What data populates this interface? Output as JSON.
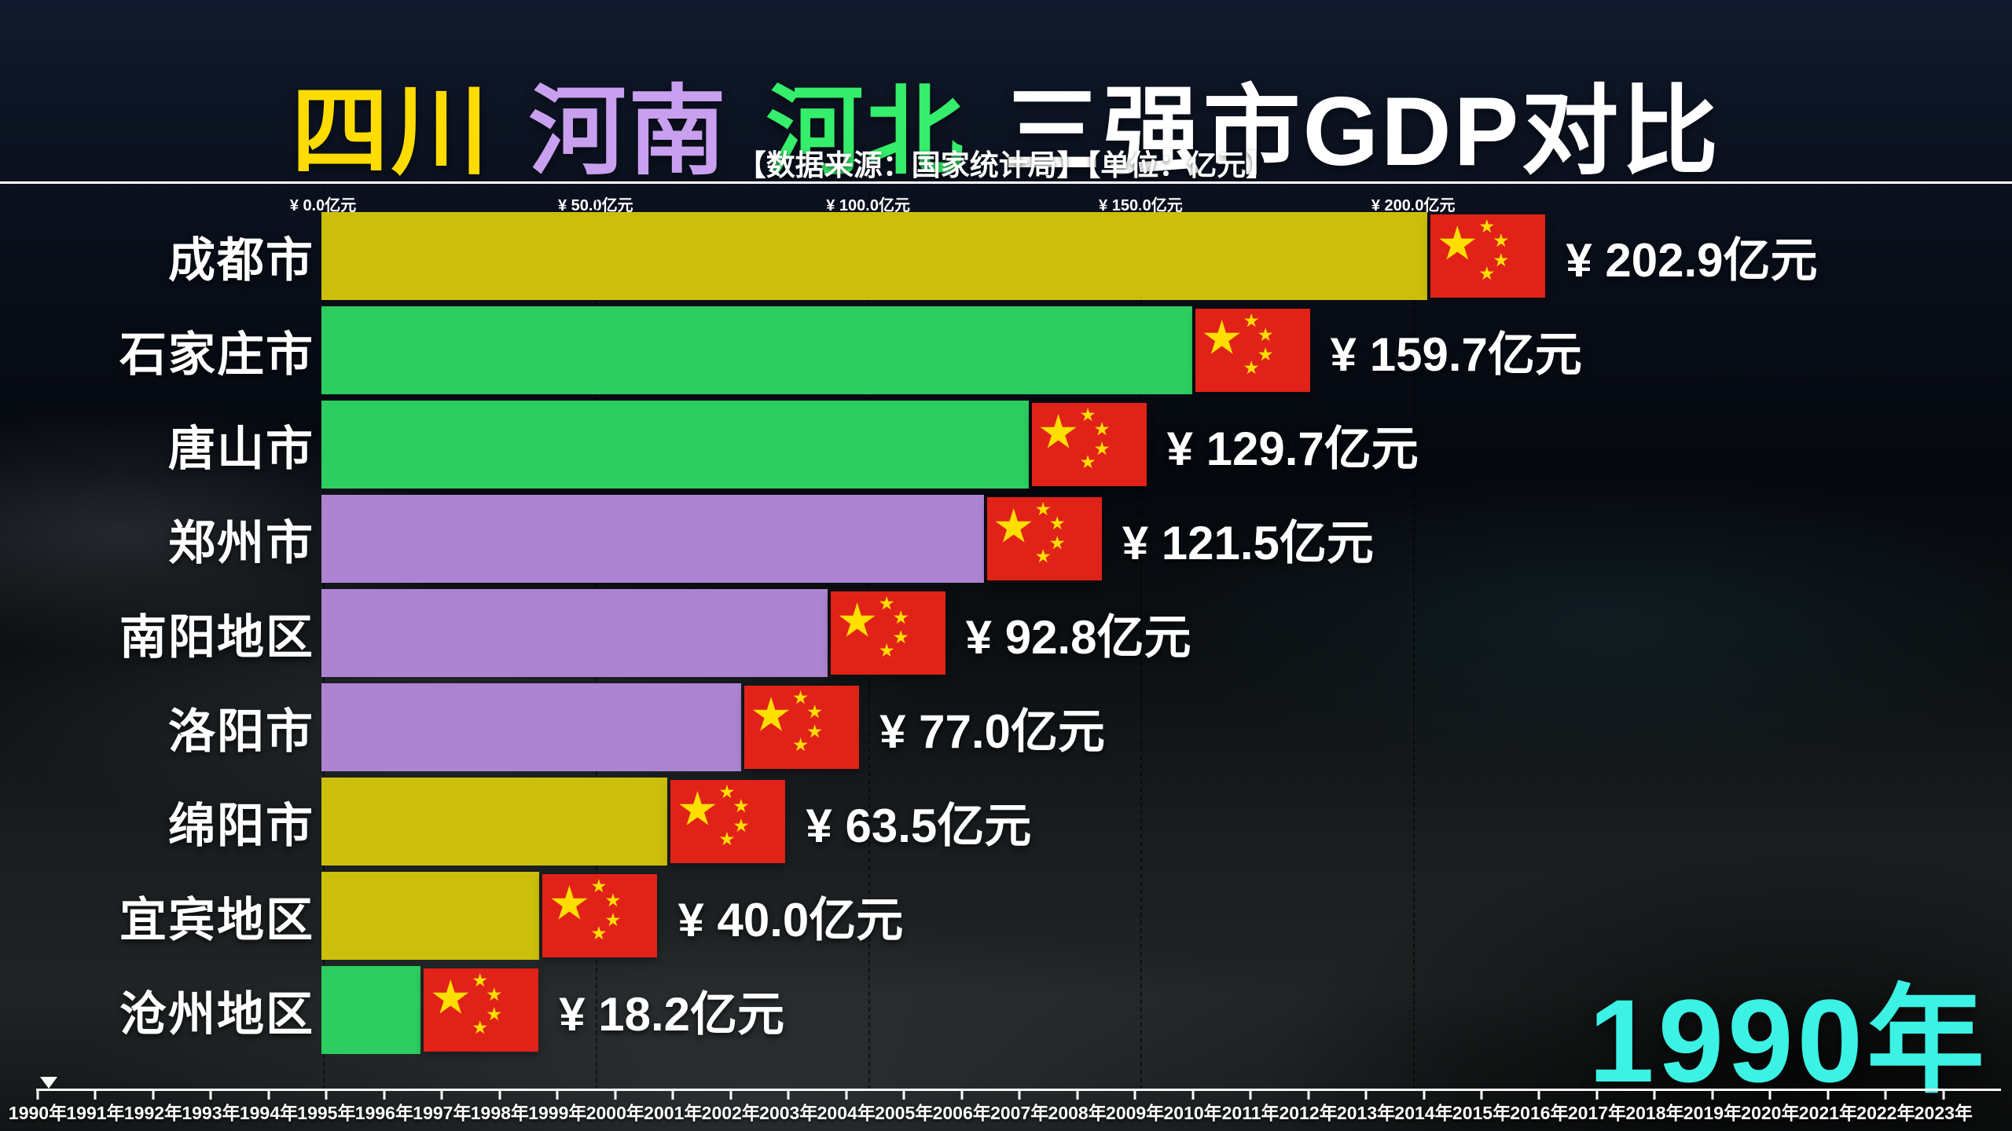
{
  "header": {
    "title_segments": [
      {
        "text": "四川",
        "color": "#FFDC00"
      },
      {
        "text": "河南",
        "color": "#C9A0F0"
      },
      {
        "text": "河北",
        "color": "#35EE6B"
      },
      {
        "text": "三强市GDP对比",
        "color": "#FFFFFF"
      }
    ],
    "subtitle": "【数据来源：国家统计局】【单位：亿元】"
  },
  "chart_data": {
    "type": "bar",
    "orientation": "horizontal",
    "title": "四川 河南 河北 三强市GDP对比",
    "unit": "亿元",
    "xlim": [
      0,
      230
    ],
    "x_ticks": [
      0,
      50,
      100,
      150,
      200
    ],
    "x_tick_labels": [
      "¥ 0.0亿元",
      "¥ 50.0亿元",
      "¥ 100.0亿元",
      "¥ 150.0亿元",
      "¥ 200.0亿元"
    ],
    "grid": "dashed-vertical",
    "categories": [
      "成都市",
      "石家庄市",
      "唐山市",
      "郑州市",
      "南阳地区",
      "洛阳市",
      "绵阳市",
      "宜宾地区",
      "沧州地区"
    ],
    "values": [
      202.9,
      159.7,
      129.7,
      121.5,
      92.8,
      77.0,
      63.5,
      40.0,
      18.2
    ],
    "value_labels": [
      "¥ 202.9亿元",
      "¥ 159.7亿元",
      "¥ 129.7亿元",
      "¥ 121.5亿元",
      "¥ 92.8亿元",
      "¥ 77.0亿元",
      "¥ 63.5亿元",
      "¥ 40.0亿元",
      "¥ 18.2亿元"
    ],
    "provinces": [
      "四川",
      "河北",
      "河北",
      "河南",
      "河南",
      "河南",
      "四川",
      "四川",
      "河北"
    ],
    "legend": {
      "四川": "#CCBF0B",
      "河南": "#AD84D1",
      "河北": "#2CCE60"
    },
    "legend_position": "title-colors"
  },
  "flag": {
    "red": "#E02218",
    "star": "#FFDE00"
  },
  "current_year": {
    "label": "1990年",
    "color": "#3BF2E4"
  },
  "timeline": {
    "marker_year": "1990年",
    "years": [
      "1990年",
      "1991年",
      "1992年",
      "1993年",
      "1994年",
      "1995年",
      "1996年",
      "1997年",
      "1998年",
      "1999年",
      "2000年",
      "2001年",
      "2002年",
      "2003年",
      "2004年",
      "2005年",
      "2006年",
      "2007年",
      "2008年",
      "2009年",
      "2010年",
      "2011年",
      "2012年",
      "2013年",
      "2014年",
      "2015年",
      "2016年",
      "2017年",
      "2018年",
      "2019年",
      "2020年",
      "2021年",
      "2022年",
      "2023年"
    ]
  }
}
